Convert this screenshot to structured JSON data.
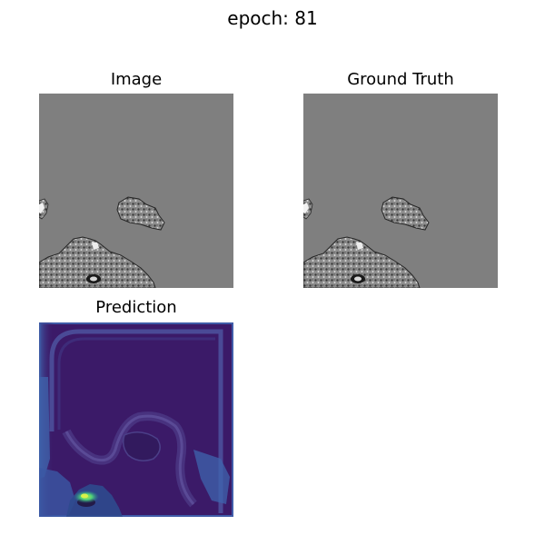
{
  "figure": {
    "title": "epoch: 81"
  },
  "panels": [
    {
      "title": "Image",
      "colormap": "gray"
    },
    {
      "title": "Ground Truth",
      "colormap": "gray"
    },
    {
      "title": "Prediction",
      "colormap": "viridis"
    }
  ],
  "colors": {
    "gray_background": "#7f7f7f",
    "viridis_dark": "#3b1a68",
    "viridis_mid": "#3f6fb0",
    "viridis_bright": "#6ee06a"
  }
}
